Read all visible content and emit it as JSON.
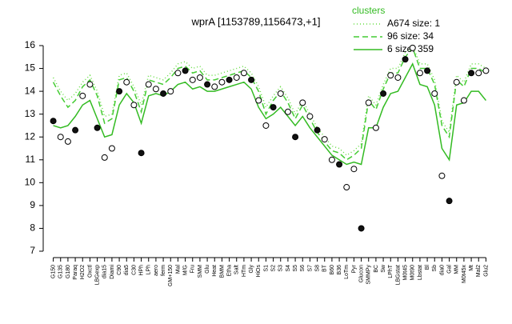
{
  "chart_data": {
    "type": "line",
    "title": "wprA [1153789,1156473,+1]",
    "legend_title": "clusters",
    "legend": "top-right",
    "categories": [
      "G150",
      "G135",
      "G180",
      "Paraq",
      "H2O2",
      "Oxctl",
      "LBGexp",
      "dia15",
      "Diami",
      "C90",
      "dia5",
      "C30",
      "HPh",
      "LPh",
      "aero",
      "ferm",
      "GM+150",
      "Mal",
      "M/G",
      "Fru",
      "SMM",
      "Glu",
      "Heat",
      "BMM",
      "Etha",
      "Salt",
      "HTm",
      "Gly",
      "HiOs",
      "S1",
      "S2",
      "S3",
      "S4",
      "S5",
      "S6",
      "S7",
      "S8",
      "BT",
      "B60",
      "B36",
      "LoTm",
      "Pyr",
      "Glucon",
      "SMMPy",
      "BC",
      "Sw",
      "LPhT",
      "LBGstat",
      "M0t45",
      "M0t90",
      "Lbstat",
      "Bl",
      "Sb",
      "dia0",
      "Gal",
      "MM",
      "M0t45x",
      "Mt",
      "Mal2",
      "Glu2"
    ],
    "points": [
      12.7,
      12.0,
      11.8,
      12.3,
      13.8,
      14.3,
      12.4,
      11.1,
      11.5,
      14.0,
      14.4,
      13.4,
      11.3,
      14.3,
      14.1,
      13.9,
      14.0,
      14.8,
      14.9,
      14.5,
      14.6,
      14.3,
      14.2,
      14.4,
      14.5,
      14.6,
      14.8,
      14.5,
      13.6,
      12.5,
      13.3,
      13.9,
      13.1,
      12.0,
      13.5,
      12.9,
      12.3,
      11.9,
      11.0,
      10.8,
      9.8,
      10.6,
      8.0,
      13.5,
      12.4,
      13.9,
      14.7,
      14.6,
      15.4,
      15.9,
      14.8,
      14.9,
      13.9,
      10.3,
      9.2,
      14.4,
      13.6,
      14.8,
      14.8,
      14.9
    ],
    "series": [
      {
        "name": "A674 size: 1",
        "color": "#66dd44",
        "dash": "dotted",
        "values": [
          14.6,
          14.0,
          13.6,
          13.9,
          14.4,
          14.7,
          14.0,
          12.9,
          13.0,
          14.7,
          14.8,
          14.2,
          13.4,
          14.7,
          14.6,
          14.5,
          14.8,
          15.2,
          15.3,
          15.0,
          15.1,
          14.7,
          14.7,
          14.8,
          14.9,
          15.0,
          15.1,
          14.8,
          14.2,
          13.3,
          13.8,
          14.2,
          13.7,
          13.0,
          13.6,
          13.0,
          12.4,
          12.0,
          11.6,
          11.5,
          11.2,
          11.4,
          11.7,
          13.8,
          13.4,
          14.3,
          15.0,
          15.0,
          15.7,
          16.0,
          15.2,
          15.2,
          14.5,
          12.7,
          12.2,
          14.7,
          14.4,
          15.2,
          15.2,
          15.0
        ]
      },
      {
        "name": "96 size: 34",
        "color": "#44cc33",
        "dash": "dashed",
        "values": [
          14.4,
          13.8,
          13.3,
          13.6,
          14.2,
          14.5,
          13.8,
          12.6,
          12.8,
          14.5,
          14.6,
          14.0,
          13.1,
          14.5,
          14.4,
          14.3,
          14.6,
          15.0,
          15.1,
          14.8,
          14.9,
          14.5,
          14.5,
          14.6,
          14.7,
          14.8,
          14.9,
          14.6,
          14.0,
          13.0,
          13.6,
          14.0,
          13.5,
          12.8,
          13.4,
          12.8,
          12.2,
          11.8,
          11.4,
          11.3,
          11.0,
          11.2,
          11.5,
          13.6,
          13.2,
          14.1,
          14.8,
          14.8,
          15.5,
          15.9,
          15.0,
          15.0,
          14.3,
          12.5,
          12.0,
          14.5,
          14.2,
          15.0,
          15.0,
          14.8
        ]
      },
      {
        "name": "6 size: 359",
        "color": "#33bb22",
        "dash": "solid",
        "values": [
          12.5,
          12.4,
          12.5,
          12.9,
          13.4,
          13.6,
          12.8,
          12.0,
          12.1,
          13.4,
          13.9,
          13.5,
          12.6,
          13.8,
          13.9,
          13.8,
          14.0,
          14.3,
          14.4,
          14.1,
          14.2,
          14.0,
          14.0,
          14.1,
          14.2,
          14.3,
          14.4,
          14.1,
          13.3,
          12.8,
          13.0,
          13.3,
          12.9,
          12.5,
          12.9,
          12.4,
          12.0,
          11.6,
          11.2,
          11.0,
          10.8,
          10.9,
          10.8,
          12.4,
          12.4,
          13.3,
          13.9,
          14.0,
          14.6,
          15.2,
          14.3,
          14.2,
          13.4,
          11.5,
          11.0,
          13.4,
          13.5,
          14.0,
          14.0,
          13.6
        ]
      }
    ],
    "ylim": [
      7,
      16
    ],
    "yticks": [
      7,
      8,
      9,
      10,
      11,
      12,
      13,
      14,
      15,
      16
    ]
  }
}
